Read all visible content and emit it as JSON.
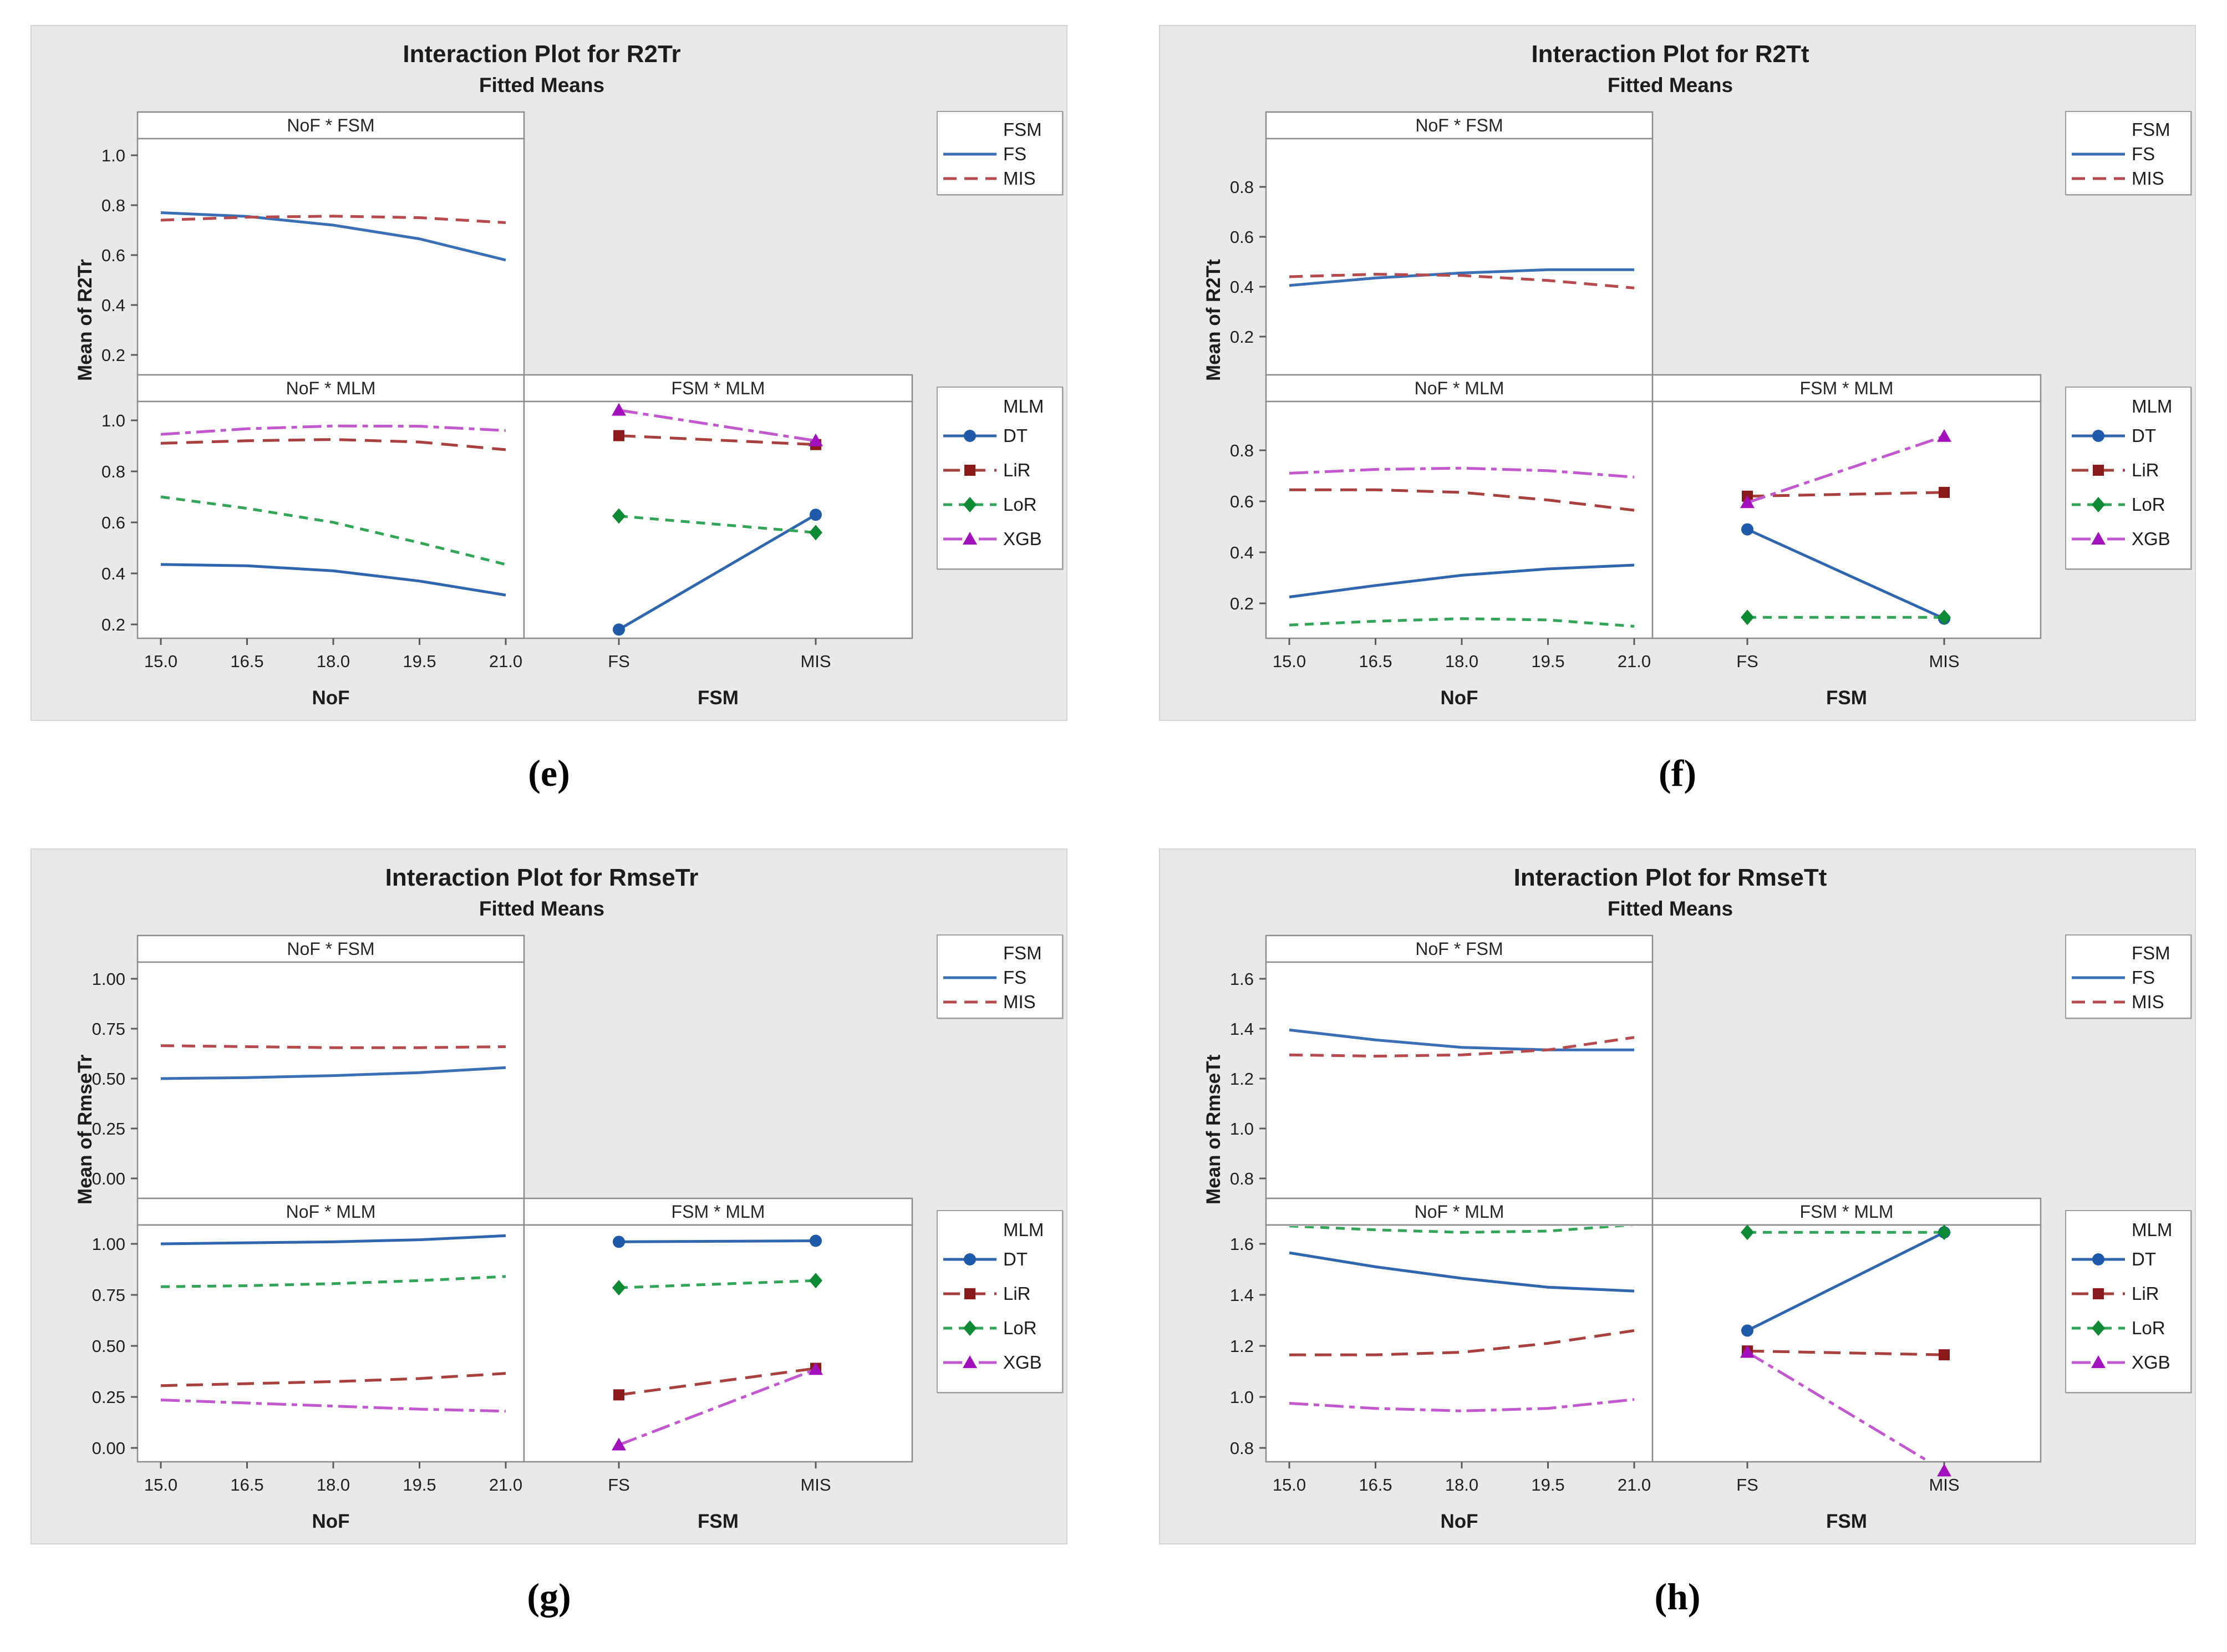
{
  "figure": {
    "background": "#ffffff"
  },
  "styles": {
    "panel_bg": "#E9E9E9",
    "frame_gray": "#8C8C8C",
    "text_color": "#1F1F1F",
    "fs_blue": "#3A6FB5",
    "mis_red": "#B64A4C",
    "dt_line": "#2F66AE",
    "dt_marker": "#1E5AA8",
    "lir_line": "#A8403E",
    "lir_marker": "#8B1A1A",
    "lor_line": "#33A558",
    "lor_marker": "#0E8A34",
    "xgb_line": "#C258CE",
    "xgb_marker": "#A112BC"
  },
  "legends": {
    "fsm": {
      "title": "FSM",
      "items": [
        "FS",
        "MIS"
      ]
    },
    "mlm": {
      "title": "MLM",
      "items": [
        "DT",
        "LiR",
        "LoR",
        "XGB"
      ]
    }
  },
  "panels": [
    {
      "caption": "(e)",
      "title": "Interaction Plot for R2Tr",
      "subtitle": "Fitted Means",
      "ylabel": "Mean of R2Tr",
      "headers": [
        "NoF * FSM",
        "NoF * MLM",
        "FSM * MLM"
      ],
      "xlabel_left": "NoF",
      "xlabel_right": "FSM",
      "yticks": [
        "1.0",
        "0.8",
        "0.6",
        "0.4",
        "0.2"
      ],
      "xticks": [
        "15.0",
        "16.5",
        "18.0",
        "19.5",
        "21.0"
      ],
      "fsm_categories": [
        "FS",
        "MIS"
      ]
    },
    {
      "caption": "(f)",
      "title": "Interaction Plot for R2Tt",
      "subtitle": "Fitted Means",
      "ylabel": "Mean of R2Tt",
      "headers": [
        "NoF * FSM",
        "NoF * MLM",
        "FSM * MLM"
      ],
      "xlabel_left": "NoF",
      "xlabel_right": "FSM",
      "yticks": [
        "0.8",
        "0.6",
        "0.4",
        "0.2"
      ],
      "xticks": [
        "15.0",
        "16.5",
        "18.0",
        "19.5",
        "21.0"
      ],
      "fsm_categories": [
        "FS",
        "MIS"
      ]
    },
    {
      "caption": "(g)",
      "title": "Interaction Plot for RmseTr",
      "subtitle": "Fitted Means",
      "ylabel": "Mean of RmseTr",
      "headers": [
        "NoF * FSM",
        "NoF * MLM",
        "FSM * MLM"
      ],
      "xlabel_left": "NoF",
      "xlabel_right": "FSM",
      "yticks": [
        "1.00",
        "0.75",
        "0.50",
        "0.25",
        "0.00"
      ],
      "xticks": [
        "15.0",
        "16.5",
        "18.0",
        "19.5",
        "21.0"
      ],
      "fsm_categories": [
        "FS",
        "MIS"
      ]
    },
    {
      "caption": "(h)",
      "title": "Interaction Plot for RmseTt",
      "subtitle": "Fitted Means",
      "ylabel": "Mean of RmseTt",
      "headers": [
        "NoF * FSM",
        "NoF * MLM",
        "FSM * MLM"
      ],
      "xlabel_left": "NoF",
      "xlabel_right": "FSM",
      "yticks": [
        "1.6",
        "1.4",
        "1.2",
        "1.0",
        "0.8"
      ],
      "xticks": [
        "15.0",
        "16.5",
        "18.0",
        "19.5",
        "21.0"
      ],
      "fsm_categories": [
        "FS",
        "MIS"
      ]
    }
  ],
  "chart_data": [
    {
      "panel": "e",
      "type": "line",
      "title": "Interaction Plot for R2Tr",
      "subtitle": "Fitted Means",
      "x_nof": [
        15,
        16.5,
        18,
        19.5,
        21
      ],
      "fsm_categories": [
        "FS",
        "MIS"
      ],
      "ytick_values": [
        1.0,
        0.8,
        0.6,
        0.4,
        0.2
      ],
      "nof_fsm": {
        "FS": [
          0.77,
          0.755,
          0.72,
          0.665,
          0.58
        ],
        "MIS": [
          0.74,
          0.752,
          0.756,
          0.75,
          0.73
        ]
      },
      "nof_mlm": {
        "DT": [
          0.435,
          0.43,
          0.41,
          0.37,
          0.315
        ],
        "LiR": [
          0.91,
          0.92,
          0.925,
          0.915,
          0.885
        ],
        "LoR": [
          0.7,
          0.655,
          0.6,
          0.52,
          0.435
        ],
        "XGB": [
          0.945,
          0.967,
          0.978,
          0.977,
          0.96
        ]
      },
      "fsm_mlm": {
        "DT": [
          0.18,
          0.63
        ],
        "LiR": [
          0.94,
          0.905
        ],
        "LoR": [
          0.625,
          0.56
        ],
        "XGB": [
          1.04,
          0.92
        ]
      }
    },
    {
      "panel": "f",
      "type": "line",
      "title": "Interaction Plot for R2Tt",
      "subtitle": "Fitted Means",
      "x_nof": [
        15,
        16.5,
        18,
        19.5,
        21
      ],
      "fsm_categories": [
        "FS",
        "MIS"
      ],
      "ytick_values": [
        0.8,
        0.6,
        0.4,
        0.2
      ],
      "nof_fsm": {
        "FS": [
          0.405,
          0.435,
          0.455,
          0.468,
          0.468
        ],
        "MIS": [
          0.44,
          0.45,
          0.445,
          0.425,
          0.395
        ]
      },
      "nof_mlm": {
        "DT": [
          0.225,
          0.27,
          0.31,
          0.335,
          0.35
        ],
        "LiR": [
          0.645,
          0.645,
          0.635,
          0.605,
          0.565
        ],
        "LoR": [
          0.115,
          0.13,
          0.14,
          0.135,
          0.11
        ],
        "XGB": [
          0.71,
          0.725,
          0.73,
          0.72,
          0.695
        ]
      },
      "fsm_mlm": {
        "DT": [
          0.49,
          0.14
        ],
        "LiR": [
          0.62,
          0.635
        ],
        "LoR": [
          0.145,
          0.145
        ],
        "XGB": [
          0.595,
          0.855
        ]
      }
    },
    {
      "panel": "g",
      "type": "line",
      "title": "Interaction Plot for RmseTr",
      "subtitle": "Fitted Means",
      "x_nof": [
        15,
        16.5,
        18,
        19.5,
        21
      ],
      "fsm_categories": [
        "FS",
        "MIS"
      ],
      "ytick_values": [
        1.0,
        0.75,
        0.5,
        0.25,
        0.0
      ],
      "nof_fsm": {
        "FS": [
          0.5,
          0.505,
          0.515,
          0.53,
          0.555
        ],
        "MIS": [
          0.665,
          0.66,
          0.655,
          0.655,
          0.66
        ]
      },
      "nof_mlm": {
        "DT": [
          1.0,
          1.005,
          1.01,
          1.02,
          1.04
        ],
        "LiR": [
          0.305,
          0.315,
          0.325,
          0.34,
          0.365
        ],
        "LoR": [
          0.79,
          0.795,
          0.805,
          0.82,
          0.84
        ],
        "XGB": [
          0.235,
          0.22,
          0.205,
          0.19,
          0.18
        ]
      },
      "fsm_mlm": {
        "DT": [
          1.01,
          1.015
        ],
        "LiR": [
          0.26,
          0.39
        ],
        "LoR": [
          0.785,
          0.82
        ],
        "XGB": [
          0.015,
          0.385
        ]
      }
    },
    {
      "panel": "h",
      "type": "line",
      "title": "Interaction Plot for RmseTt",
      "subtitle": "Fitted Means",
      "x_nof": [
        15,
        16.5,
        18,
        19.5,
        21
      ],
      "fsm_categories": [
        "FS",
        "MIS"
      ],
      "ytick_values": [
        1.6,
        1.4,
        1.2,
        1.0,
        0.8
      ],
      "nof_fsm": {
        "FS": [
          1.395,
          1.355,
          1.325,
          1.315,
          1.315
        ],
        "MIS": [
          1.295,
          1.29,
          1.295,
          1.315,
          1.365
        ]
      },
      "nof_mlm": {
        "DT": [
          1.565,
          1.51,
          1.465,
          1.43,
          1.415
        ],
        "LiR": [
          1.165,
          1.165,
          1.175,
          1.21,
          1.26
        ],
        "LoR": [
          1.67,
          1.655,
          1.645,
          1.65,
          1.675
        ],
        "XGB": [
          0.975,
          0.955,
          0.945,
          0.955,
          0.99
        ]
      },
      "fsm_mlm": {
        "DT": [
          1.26,
          1.645
        ],
        "LiR": [
          1.18,
          1.165
        ],
        "LoR": [
          1.645,
          1.645
        ],
        "XGB": [
          1.175,
          0.71
        ]
      }
    }
  ]
}
